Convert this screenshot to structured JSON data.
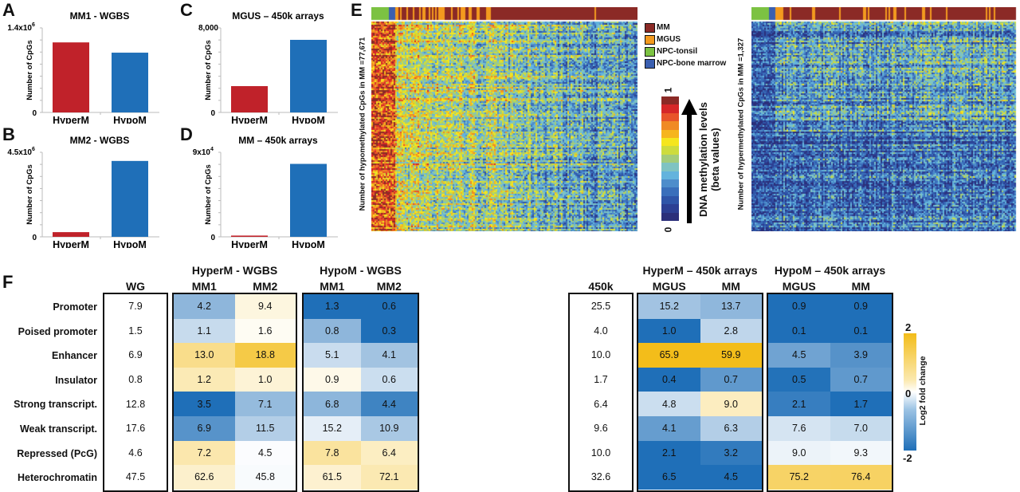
{
  "panels": {
    "A": "A",
    "B": "B",
    "C": "C",
    "D": "D",
    "E": "E",
    "F": "F"
  },
  "chart_data": [
    {
      "id": "A",
      "type": "bar",
      "title": "MM1 - WGBS",
      "ylabel": "Number of CpGs",
      "categories": [
        "HyperM",
        "HypoM"
      ],
      "values": [
        1160000,
        990000
      ],
      "ylim": [
        0,
        1400000
      ],
      "yticks": [
        "0",
        "1.4x10",
        "6"
      ],
      "colors": [
        "#c0222a",
        "#1f6fb8"
      ]
    },
    {
      "id": "B",
      "type": "bar",
      "title": "MM2 - WGBS",
      "ylabel": "Number of CpGs",
      "categories": [
        "HyperM",
        "HypoM"
      ],
      "values": [
        250000,
        4040000
      ],
      "ylim": [
        0,
        4500000
      ],
      "yticks": [
        "0",
        "4.5x10",
        "6"
      ],
      "colors": [
        "#c0222a",
        "#1f6fb8"
      ]
    },
    {
      "id": "C",
      "type": "bar",
      "title": "MGUS – 450k arrays",
      "ylabel": "Number of CpGs",
      "categories": [
        "HyperM",
        "HypoM"
      ],
      "values": [
        2490,
        6870
      ],
      "ylim": [
        0,
        8000
      ],
      "yticks": [
        "0",
        "8,000",
        ""
      ],
      "colors": [
        "#c0222a",
        "#1f6fb8"
      ]
    },
    {
      "id": "D",
      "type": "bar",
      "title": "MM – 450k arrays",
      "ylabel": "Number of CpGs",
      "categories": [
        "HyperM",
        "HypoM"
      ],
      "values": [
        1327,
        77671
      ],
      "ylim": [
        0,
        90000
      ],
      "yticks": [
        "0",
        "9x10",
        "4"
      ],
      "colors": [
        "#c0222a",
        "#1f6fb8"
      ]
    },
    {
      "id": "E",
      "type": "heatmap",
      "left_ylabel": "Number of hypomethylated CpGs in MM =77,671",
      "right_ylabel": "Number of hypermethylated CpGs in MM =1,327",
      "legend": [
        {
          "label": "MM",
          "color": "#8b2a26"
        },
        {
          "label": "MGUS",
          "color": "#f39a1e"
        },
        {
          "label": "NPC-tonsil",
          "color": "#7cc242"
        },
        {
          "label": "NPC-bone marrow",
          "color": "#3a5fb0"
        }
      ],
      "colorbar": {
        "label_line1": "DNA methylation levels",
        "label_line2": "(beta values)",
        "min": "0",
        "max": "1",
        "colors": [
          "#2b2f7a",
          "#2c3f93",
          "#2f55a8",
          "#3a6fbb",
          "#4e8dcb",
          "#63b3dd",
          "#7fc3c2",
          "#a3cc7a",
          "#cddc3d",
          "#f5e61d",
          "#f6b51d",
          "#f08a24",
          "#e8542a",
          "#d62728",
          "#8b2a26"
        ]
      }
    },
    {
      "id": "F",
      "type": "table",
      "row_labels": [
        "Promoter",
        "Poised promoter",
        "Enhancer",
        "Insulator",
        "Strong transcript.",
        "Weak transcript.",
        "Repressed (PcG)",
        "Heterochromatin"
      ],
      "groups": [
        {
          "title": "",
          "cols": [
            "WG"
          ],
          "ref": true,
          "values": [
            [
              7.9
            ],
            [
              1.5
            ],
            [
              6.9
            ],
            [
              0.8
            ],
            [
              12.8
            ],
            [
              17.6
            ],
            [
              4.6
            ],
            [
              47.5
            ]
          ]
        },
        {
          "title": "HyperM - WGBS",
          "cols": [
            "MM1",
            "MM2"
          ],
          "values": [
            [
              4.2,
              9.4
            ],
            [
              1.1,
              1.6
            ],
            [
              13.0,
              18.8
            ],
            [
              1.2,
              1.0
            ],
            [
              3.5,
              7.1
            ],
            [
              6.9,
              11.5
            ],
            [
              7.2,
              4.5
            ],
            [
              62.6,
              45.8
            ]
          ]
        },
        {
          "title": "HypoM - WGBS",
          "cols": [
            "MM1",
            "MM2"
          ],
          "values": [
            [
              1.3,
              0.6
            ],
            [
              0.8,
              0.3
            ],
            [
              5.1,
              4.1
            ],
            [
              0.9,
              0.6
            ],
            [
              6.8,
              4.4
            ],
            [
              15.2,
              10.9
            ],
            [
              7.8,
              6.4
            ],
            [
              61.5,
              72.1
            ]
          ]
        },
        {
          "title": "",
          "cols": [
            "450k"
          ],
          "ref": true,
          "values": [
            [
              25.5
            ],
            [
              4.0
            ],
            [
              10.0
            ],
            [
              1.7
            ],
            [
              6.4
            ],
            [
              9.6
            ],
            [
              10.0
            ],
            [
              32.6
            ]
          ]
        },
        {
          "title": "HyperM – 450k arrays",
          "cols": [
            "MGUS",
            "MM"
          ],
          "values": [
            [
              15.2,
              13.7
            ],
            [
              1.0,
              2.8
            ],
            [
              65.9,
              59.9
            ],
            [
              0.4,
              0.7
            ],
            [
              4.8,
              9.0
            ],
            [
              4.1,
              6.3
            ],
            [
              2.1,
              3.2
            ],
            [
              6.5,
              4.5
            ]
          ]
        },
        {
          "title": "HypoM – 450k arrays",
          "cols": [
            "MGUS",
            "MM"
          ],
          "values": [
            [
              0.9,
              0.9
            ],
            [
              0.1,
              0.1
            ],
            [
              4.5,
              3.9
            ],
            [
              0.5,
              0.7
            ],
            [
              2.1,
              1.7
            ],
            [
              7.6,
              7.0
            ],
            [
              9.0,
              9.3
            ],
            [
              75.2,
              76.4
            ]
          ]
        }
      ],
      "colorbar": {
        "label": "Log2 fold change",
        "max": "2",
        "mid": "0",
        "min": "-2",
        "low_color": "#1f6fb8",
        "mid_color": "#ffffff",
        "high_color": "#f3bd1a"
      }
    }
  ]
}
